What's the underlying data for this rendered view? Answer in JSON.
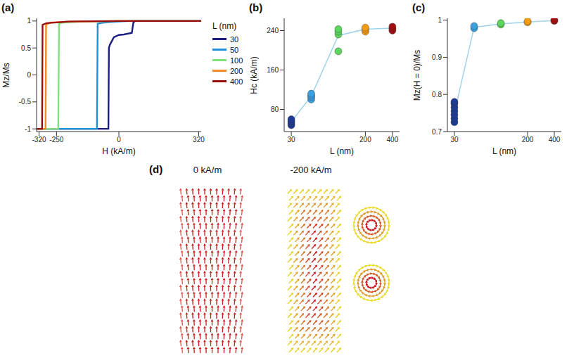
{
  "chart_data": [
    {
      "type": "line",
      "panel_label": "(a)",
      "x_label": "H (kA/m)",
      "y_label": "Mz/Ms",
      "xlim": [
        -330,
        330
      ],
      "xticks": [
        -320,
        -250,
        0,
        320
      ],
      "ylim": [
        -1.05,
        1.05
      ],
      "yticks": [
        -1,
        -0.5,
        0,
        0.5,
        1
      ],
      "legend": "right",
      "legend_title": "L (nm)",
      "series": [
        {
          "name": "30",
          "color": "#1a1f80",
          "x": [
            330,
            65,
            58,
            52,
            20,
            0,
            -20,
            -36,
            -40,
            -42,
            -330
          ],
          "values": [
            1,
            1,
            0.97,
            0.78,
            0.75,
            0.74,
            0.7,
            0.56,
            0.5,
            -1,
            -1
          ]
        },
        {
          "name": "50",
          "color": "#1e90d8",
          "x": [
            330,
            40,
            0,
            -60,
            -85,
            -88,
            -330
          ],
          "values": [
            1,
            1,
            0.99,
            0.97,
            0.95,
            -1,
            -1
          ]
        },
        {
          "name": "100",
          "color": "#7ee07e",
          "x": [
            330,
            0,
            -150,
            -225,
            -240,
            -243,
            -330
          ],
          "values": [
            1,
            1,
            0.99,
            0.97,
            0.95,
            -1,
            -1
          ]
        },
        {
          "name": "200",
          "color": "#f5891f",
          "x": [
            330,
            0,
            -200,
            -275,
            -292,
            -294,
            -330
          ],
          "values": [
            1,
            1,
            0.99,
            0.97,
            0.93,
            -1,
            -1
          ]
        },
        {
          "name": "400",
          "color": "#9b0d0d",
          "x": [
            330,
            0,
            -200,
            -290,
            -306,
            -308,
            -330
          ],
          "values": [
            1,
            1,
            0.99,
            0.96,
            0.93,
            -1,
            -1
          ]
        }
      ]
    },
    {
      "type": "scatter",
      "panel_label": "(b)",
      "x_label": "L (nm)",
      "y_label": "Hc (kA/m)",
      "log": "x",
      "xlim": [
        25,
        480
      ],
      "xticks": [
        30,
        200,
        400
      ],
      "ylim": [
        35,
        265
      ],
      "yticks": [
        80,
        160,
        240
      ],
      "series": [
        {
          "type": "line",
          "color": "#9fd3ea",
          "x": [
            30,
            50,
            100,
            200,
            400
          ],
          "values": [
            55,
            107,
            230,
            243,
            245
          ]
        },
        {
          "color": "#1f3a93",
          "x": [
            30,
            30,
            30,
            30
          ],
          "values": [
            48,
            52,
            56,
            60
          ]
        },
        {
          "color": "#3aa0e0",
          "x": [
            50,
            50,
            50,
            50
          ],
          "values": [
            100,
            105,
            108,
            112
          ]
        },
        {
          "color": "#5cd65c",
          "x": [
            100,
            100,
            100,
            100
          ],
          "values": [
            198,
            232,
            238,
            243
          ]
        },
        {
          "color": "#f39c12",
          "x": [
            200,
            200,
            200
          ],
          "values": [
            238,
            242,
            246
          ]
        },
        {
          "color": "#a01010",
          "x": [
            400,
            400,
            400
          ],
          "values": [
            240,
            244,
            248
          ]
        }
      ]
    },
    {
      "type": "scatter",
      "panel_label": "(c)",
      "x_label": "L (nm)",
      "y_label": "Mz(H = 0)/Ms",
      "log": "x",
      "xlim": [
        25,
        480
      ],
      "xticks": [
        30,
        200,
        400
      ],
      "ylim": [
        0.7,
        1.005
      ],
      "yticks": [
        0.7,
        0.8,
        0.9,
        1
      ],
      "series": [
        {
          "type": "line",
          "color": "#9fd3ea",
          "x": [
            30,
            50,
            100,
            200,
            400
          ],
          "values": [
            0.75,
            0.981,
            0.99,
            0.995,
            0.999
          ]
        },
        {
          "color": "#1f3a93",
          "x": [
            30,
            30,
            30,
            30,
            30,
            30,
            30
          ],
          "values": [
            0.725,
            0.735,
            0.745,
            0.755,
            0.765,
            0.775,
            0.78
          ]
        },
        {
          "color": "#3aa0e0",
          "x": [
            50,
            50
          ],
          "values": [
            0.978,
            0.984
          ]
        },
        {
          "color": "#5cd65c",
          "x": [
            100,
            100
          ],
          "values": [
            0.988,
            0.992
          ]
        },
        {
          "color": "#f39c12",
          "x": [
            200,
            200
          ],
          "values": [
            0.994,
            0.997
          ]
        },
        {
          "color": "#a01010",
          "x": [
            400,
            400
          ],
          "values": [
            0.998,
            1.0
          ]
        }
      ]
    }
  ],
  "panel_d": {
    "panel_label": "(d)",
    "captions": [
      "0 kA/m",
      "-200 kA/m"
    ]
  }
}
